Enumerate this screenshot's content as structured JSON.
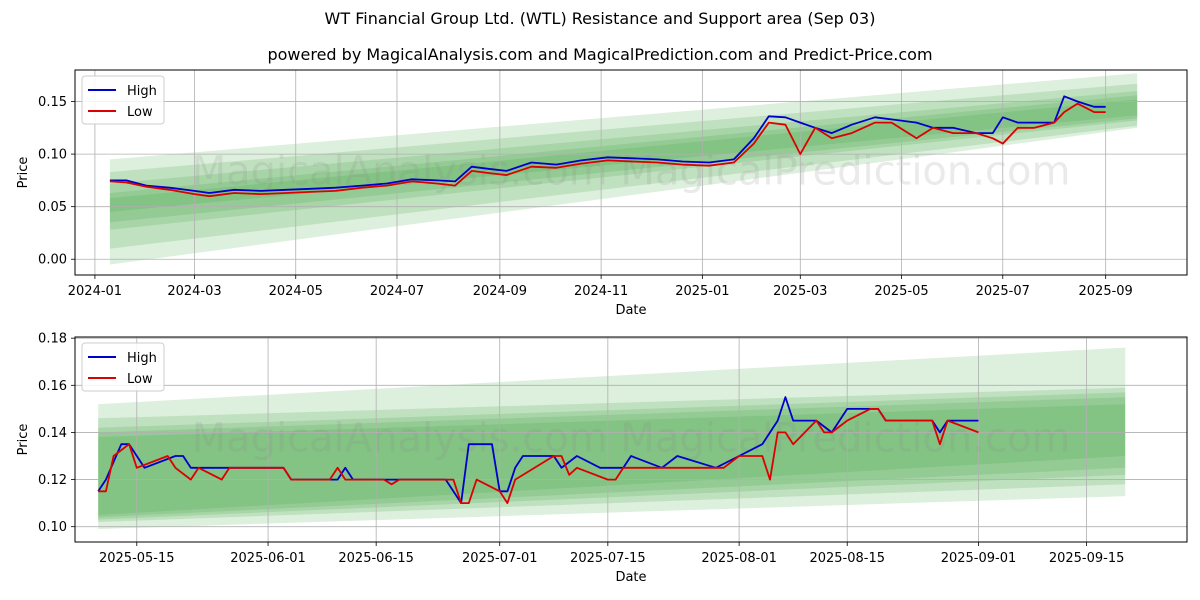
{
  "figure": {
    "title": "WT Financial Group Ltd. (WTL) Resistance and Support area (Sep 03)",
    "subtitle": "powered by MagicalAnalysis.com and MagicalPrediction.com and Predict-Price.com",
    "watermark_text": "MagicalAnalysis.com    MagicalPrediction.com",
    "colors": {
      "high": "#0000cc",
      "low": "#dd0000",
      "band": "#2e9a2e",
      "grid": "#b0b0b0"
    }
  },
  "chart_data": [
    {
      "type": "line",
      "xlabel": "Date",
      "ylabel": "Price",
      "xlim": [
        "2023-12-20",
        "2025-10-20"
      ],
      "ylim": [
        -0.015,
        0.18
      ],
      "grid": true,
      "legend": "top-left",
      "x_ticks": [
        "2024-01",
        "2024-03",
        "2024-05",
        "2024-07",
        "2024-09",
        "2024-11",
        "2025-01",
        "2025-03",
        "2025-05",
        "2025-07",
        "2025-09"
      ],
      "x_tick_dates": [
        "2024-01-01",
        "2024-03-01",
        "2024-05-01",
        "2024-07-01",
        "2024-09-01",
        "2024-11-01",
        "2025-01-01",
        "2025-03-01",
        "2025-05-01",
        "2025-07-01",
        "2025-09-01"
      ],
      "y_ticks": [
        "0.00",
        "0.05",
        "0.10",
        "0.15"
      ],
      "y_tick_values": [
        0.0,
        0.05,
        0.1,
        0.15
      ],
      "band_range": [
        "2024-01-10",
        "2025-09-20"
      ],
      "bands": [
        {
          "start": [
            -0.005,
            0.095
          ],
          "end": [
            0.125,
            0.177
          ]
        },
        {
          "start": [
            0.01,
            0.083
          ],
          "end": [
            0.127,
            0.167
          ]
        },
        {
          "start": [
            0.028,
            0.072
          ],
          "end": [
            0.132,
            0.16
          ]
        },
        {
          "start": [
            0.035,
            0.063
          ],
          "end": [
            0.134,
            0.156
          ]
        },
        {
          "start": [
            0.045,
            0.058
          ],
          "end": [
            0.137,
            0.152
          ]
        }
      ],
      "series": [
        {
          "name": "High",
          "points": [
            [
              "2024-01-10",
              0.075
            ],
            [
              "2024-01-20",
              0.075
            ],
            [
              "2024-02-01",
              0.07
            ],
            [
              "2024-02-15",
              0.068
            ],
            [
              "2024-03-01",
              0.065
            ],
            [
              "2024-03-10",
              0.063
            ],
            [
              "2024-03-25",
              0.066
            ],
            [
              "2024-04-10",
              0.065
            ],
            [
              "2024-04-25",
              0.066
            ],
            [
              "2024-05-10",
              0.067
            ],
            [
              "2024-05-25",
              0.068
            ],
            [
              "2024-06-10",
              0.07
            ],
            [
              "2024-06-25",
              0.072
            ],
            [
              "2024-07-10",
              0.076
            ],
            [
              "2024-07-25",
              0.075
            ],
            [
              "2024-08-05",
              0.074
            ],
            [
              "2024-08-15",
              0.088
            ],
            [
              "2024-08-25",
              0.086
            ],
            [
              "2024-09-05",
              0.084
            ],
            [
              "2024-09-20",
              0.092
            ],
            [
              "2024-10-05",
              0.09
            ],
            [
              "2024-10-20",
              0.094
            ],
            [
              "2024-11-05",
              0.097
            ],
            [
              "2024-11-20",
              0.096
            ],
            [
              "2024-12-05",
              0.095
            ],
            [
              "2024-12-20",
              0.093
            ],
            [
              "2025-01-05",
              0.092
            ],
            [
              "2025-01-20",
              0.095
            ],
            [
              "2025-02-01",
              0.115
            ],
            [
              "2025-02-10",
              0.136
            ],
            [
              "2025-02-20",
              0.135
            ],
            [
              "2025-03-01",
              0.13
            ],
            [
              "2025-03-10",
              0.125
            ],
            [
              "2025-03-20",
              0.12
            ],
            [
              "2025-04-01",
              0.128
            ],
            [
              "2025-04-15",
              0.135
            ],
            [
              "2025-04-25",
              0.133
            ],
            [
              "2025-05-10",
              0.13
            ],
            [
              "2025-05-20",
              0.125
            ],
            [
              "2025-06-01",
              0.125
            ],
            [
              "2025-06-15",
              0.12
            ],
            [
              "2025-06-25",
              0.12
            ],
            [
              "2025-07-01",
              0.135
            ],
            [
              "2025-07-10",
              0.13
            ],
            [
              "2025-07-20",
              0.13
            ],
            [
              "2025-08-01",
              0.13
            ],
            [
              "2025-08-07",
              0.155
            ],
            [
              "2025-08-15",
              0.15
            ],
            [
              "2025-08-25",
              0.145
            ],
            [
              "2025-09-01",
              0.145
            ]
          ]
        },
        {
          "name": "Low",
          "points": [
            [
              "2024-01-10",
              0.074
            ],
            [
              "2024-01-20",
              0.073
            ],
            [
              "2024-02-01",
              0.069
            ],
            [
              "2024-02-15",
              0.066
            ],
            [
              "2024-03-01",
              0.062
            ],
            [
              "2024-03-10",
              0.06
            ],
            [
              "2024-03-25",
              0.063
            ],
            [
              "2024-04-10",
              0.062
            ],
            [
              "2024-04-25",
              0.063
            ],
            [
              "2024-05-10",
              0.064
            ],
            [
              "2024-05-25",
              0.065
            ],
            [
              "2024-06-10",
              0.068
            ],
            [
              "2024-06-25",
              0.07
            ],
            [
              "2024-07-10",
              0.074
            ],
            [
              "2024-07-25",
              0.072
            ],
            [
              "2024-08-05",
              0.07
            ],
            [
              "2024-08-15",
              0.084
            ],
            [
              "2024-08-25",
              0.082
            ],
            [
              "2024-09-05",
              0.08
            ],
            [
              "2024-09-20",
              0.088
            ],
            [
              "2024-10-05",
              0.087
            ],
            [
              "2024-10-20",
              0.091
            ],
            [
              "2024-11-05",
              0.094
            ],
            [
              "2024-11-20",
              0.093
            ],
            [
              "2024-12-05",
              0.092
            ],
            [
              "2024-12-20",
              0.09
            ],
            [
              "2025-01-05",
              0.089
            ],
            [
              "2025-01-20",
              0.092
            ],
            [
              "2025-02-01",
              0.11
            ],
            [
              "2025-02-10",
              0.13
            ],
            [
              "2025-02-20",
              0.128
            ],
            [
              "2025-03-01",
              0.1
            ],
            [
              "2025-03-10",
              0.125
            ],
            [
              "2025-03-20",
              0.115
            ],
            [
              "2025-04-01",
              0.12
            ],
            [
              "2025-04-15",
              0.13
            ],
            [
              "2025-04-25",
              0.13
            ],
            [
              "2025-05-10",
              0.115
            ],
            [
              "2025-05-20",
              0.125
            ],
            [
              "2025-06-01",
              0.12
            ],
            [
              "2025-06-15",
              0.12
            ],
            [
              "2025-06-25",
              0.115
            ],
            [
              "2025-07-01",
              0.11
            ],
            [
              "2025-07-10",
              0.125
            ],
            [
              "2025-07-20",
              0.125
            ],
            [
              "2025-08-01",
              0.13
            ],
            [
              "2025-08-07",
              0.14
            ],
            [
              "2025-08-15",
              0.148
            ],
            [
              "2025-08-25",
              0.14
            ],
            [
              "2025-09-01",
              0.14
            ]
          ]
        }
      ]
    },
    {
      "type": "line",
      "xlabel": "Date",
      "ylabel": "Price",
      "xlim": [
        "2025-05-07",
        "2025-09-28"
      ],
      "ylim": [
        0.0935,
        0.1805
      ],
      "grid": true,
      "legend": "top-left",
      "x_ticks": [
        "2025-05-15",
        "2025-06-01",
        "2025-06-15",
        "2025-07-01",
        "2025-07-15",
        "2025-08-01",
        "2025-08-15",
        "2025-09-01",
        "2025-09-15"
      ],
      "x_tick_dates": [
        "2025-05-15",
        "2025-06-01",
        "2025-06-15",
        "2025-07-01",
        "2025-07-15",
        "2025-08-01",
        "2025-08-15",
        "2025-09-01",
        "2025-09-15"
      ],
      "y_ticks": [
        "0.10",
        "0.12",
        "0.14",
        "0.16",
        "0.18"
      ],
      "y_tick_values": [
        0.1,
        0.12,
        0.14,
        0.16,
        0.18
      ],
      "band_range": [
        "2025-05-10",
        "2025-09-20"
      ],
      "bands": [
        {
          "start": [
            0.099,
            0.152
          ],
          "end": [
            0.113,
            0.176
          ]
        },
        {
          "start": [
            0.102,
            0.146
          ],
          "end": [
            0.118,
            0.159
          ]
        },
        {
          "start": [
            0.103,
            0.142
          ],
          "end": [
            0.122,
            0.157
          ]
        },
        {
          "start": [
            0.104,
            0.14
          ],
          "end": [
            0.125,
            0.155
          ]
        },
        {
          "start": [
            0.105,
            0.138
          ],
          "end": [
            0.13,
            0.152
          ]
        }
      ],
      "series": [
        {
          "name": "High",
          "points": [
            [
              "2025-05-10",
              0.115
            ],
            [
              "2025-05-11",
              0.12
            ],
            [
              "2025-05-13",
              0.135
            ],
            [
              "2025-05-14",
              0.135
            ],
            [
              "2025-05-16",
              0.125
            ],
            [
              "2025-05-20",
              0.13
            ],
            [
              "2025-05-21",
              0.13
            ],
            [
              "2025-05-22",
              0.125
            ],
            [
              "2025-05-24",
              0.125
            ],
            [
              "2025-05-28",
              0.125
            ],
            [
              "2025-06-01",
              0.125
            ],
            [
              "2025-06-03",
              0.125
            ],
            [
              "2025-06-04",
              0.12
            ],
            [
              "2025-06-10",
              0.12
            ],
            [
              "2025-06-11",
              0.125
            ],
            [
              "2025-06-12",
              0.12
            ],
            [
              "2025-06-24",
              0.12
            ],
            [
              "2025-06-25",
              0.115
            ],
            [
              "2025-06-26",
              0.11
            ],
            [
              "2025-06-27",
              0.135
            ],
            [
              "2025-06-30",
              0.135
            ],
            [
              "2025-07-01",
              0.115
            ],
            [
              "2025-07-02",
              0.115
            ],
            [
              "2025-07-03",
              0.125
            ],
            [
              "2025-07-04",
              0.13
            ],
            [
              "2025-07-08",
              0.13
            ],
            [
              "2025-07-09",
              0.125
            ],
            [
              "2025-07-11",
              0.13
            ],
            [
              "2025-07-14",
              0.125
            ],
            [
              "2025-07-17",
              0.125
            ],
            [
              "2025-07-18",
              0.13
            ],
            [
              "2025-07-22",
              0.125
            ],
            [
              "2025-07-24",
              0.13
            ],
            [
              "2025-07-29",
              0.125
            ],
            [
              "2025-08-01",
              0.13
            ],
            [
              "2025-08-04",
              0.135
            ],
            [
              "2025-08-06",
              0.145
            ],
            [
              "2025-08-07",
              0.155
            ],
            [
              "2025-08-08",
              0.145
            ],
            [
              "2025-08-11",
              0.145
            ],
            [
              "2025-08-13",
              0.14
            ],
            [
              "2025-08-15",
              0.15
            ],
            [
              "2025-08-19",
              0.15
            ],
            [
              "2025-08-20",
              0.145
            ],
            [
              "2025-08-26",
              0.145
            ],
            [
              "2025-08-27",
              0.14
            ],
            [
              "2025-08-28",
              0.145
            ],
            [
              "2025-09-01",
              0.145
            ]
          ]
        },
        {
          "name": "Low",
          "points": [
            [
              "2025-05-10",
              0.115
            ],
            [
              "2025-05-11",
              0.115
            ],
            [
              "2025-05-12",
              0.13
            ],
            [
              "2025-05-14",
              0.135
            ],
            [
              "2025-05-15",
              0.125
            ],
            [
              "2025-05-19",
              0.13
            ],
            [
              "2025-05-20",
              0.125
            ],
            [
              "2025-05-22",
              0.12
            ],
            [
              "2025-05-23",
              0.125
            ],
            [
              "2025-05-26",
              0.12
            ],
            [
              "2025-05-27",
              0.125
            ],
            [
              "2025-06-03",
              0.125
            ],
            [
              "2025-06-04",
              0.12
            ],
            [
              "2025-06-09",
              0.12
            ],
            [
              "2025-06-10",
              0.125
            ],
            [
              "2025-06-11",
              0.12
            ],
            [
              "2025-06-16",
              0.12
            ],
            [
              "2025-06-17",
              0.118
            ],
            [
              "2025-06-18",
              0.12
            ],
            [
              "2025-06-25",
              0.12
            ],
            [
              "2025-06-26",
              0.11
            ],
            [
              "2025-06-27",
              0.11
            ],
            [
              "2025-06-28",
              0.12
            ],
            [
              "2025-07-01",
              0.115
            ],
            [
              "2025-07-02",
              0.11
            ],
            [
              "2025-07-03",
              0.12
            ],
            [
              "2025-07-08",
              0.13
            ],
            [
              "2025-07-09",
              0.13
            ],
            [
              "2025-07-10",
              0.122
            ],
            [
              "2025-07-11",
              0.125
            ],
            [
              "2025-07-15",
              0.12
            ],
            [
              "2025-07-16",
              0.12
            ],
            [
              "2025-07-17",
              0.125
            ],
            [
              "2025-07-28",
              0.125
            ],
            [
              "2025-07-30",
              0.125
            ],
            [
              "2025-08-01",
              0.13
            ],
            [
              "2025-08-04",
              0.13
            ],
            [
              "2025-08-05",
              0.12
            ],
            [
              "2025-08-06",
              0.14
            ],
            [
              "2025-08-07",
              0.14
            ],
            [
              "2025-08-08",
              0.135
            ],
            [
              "2025-08-11",
              0.145
            ],
            [
              "2025-08-12",
              0.14
            ],
            [
              "2025-08-13",
              0.14
            ],
            [
              "2025-08-15",
              0.145
            ],
            [
              "2025-08-18",
              0.15
            ],
            [
              "2025-08-19",
              0.15
            ],
            [
              "2025-08-20",
              0.145
            ],
            [
              "2025-08-26",
              0.145
            ],
            [
              "2025-08-27",
              0.135
            ],
            [
              "2025-08-28",
              0.145
            ],
            [
              "2025-09-01",
              0.14
            ]
          ]
        }
      ]
    }
  ]
}
